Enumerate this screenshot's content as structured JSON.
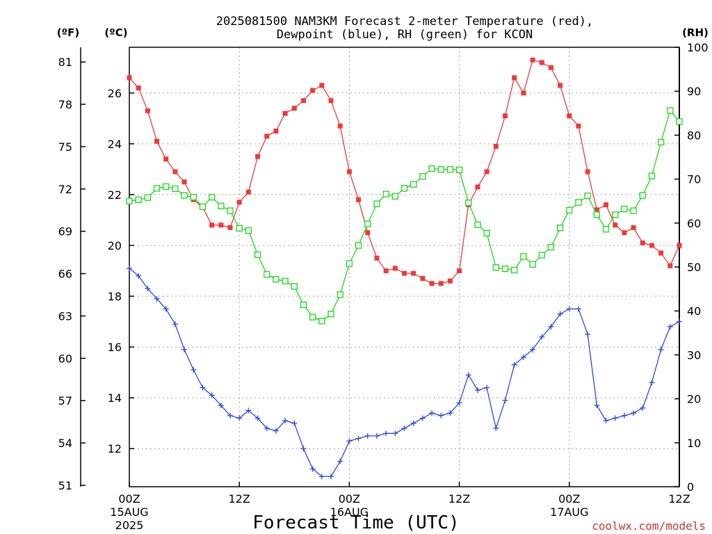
{
  "title_line1": "2025081500 NAM3KM Forecast 2-meter Temperature (red),",
  "title_line2": "Dewpoint (blue), RH (green) for KCON",
  "unit_f": "(ºF)",
  "unit_c": "(ºC)",
  "unit_rh": "(RH)",
  "xlabel": "Forecast Time (UTC)",
  "credit": "coolwx.com/models",
  "colors": {
    "temperature": "#f03838",
    "dewpoint": "#2848e8",
    "rh": "#18d818",
    "grid": "#a0a0a0",
    "credit": "#d03030"
  },
  "chart_data": {
    "type": "line",
    "x_unit": "hours since 2025-08-15 00Z",
    "x": [
      0,
      1,
      2,
      3,
      4,
      5,
      6,
      7,
      8,
      9,
      10,
      11,
      12,
      13,
      14,
      15,
      16,
      17,
      18,
      19,
      20,
      21,
      22,
      23,
      24,
      25,
      26,
      27,
      28,
      29,
      30,
      31,
      32,
      33,
      34,
      35,
      36,
      37,
      38,
      39,
      40,
      41,
      42,
      43,
      44,
      45,
      46,
      47,
      48,
      49,
      50,
      51,
      52,
      53,
      54,
      55,
      56,
      57,
      58,
      59,
      60
    ],
    "xlim": [
      0,
      60
    ],
    "x_ticks": [
      {
        "x": 0,
        "lines": [
          "00Z",
          "15AUG",
          "2025"
        ]
      },
      {
        "x": 12,
        "lines": [
          "12Z"
        ]
      },
      {
        "x": 24,
        "lines": [
          "00Z",
          "16AUG"
        ]
      },
      {
        "x": 36,
        "lines": [
          "12Z"
        ]
      },
      {
        "x": 48,
        "lines": [
          "00Z",
          "17AUG"
        ]
      },
      {
        "x": 60,
        "lines": [
          "12Z"
        ]
      }
    ],
    "y_c_lim": [
      10.5,
      27.8
    ],
    "y_c_ticks": [
      12,
      14,
      16,
      18,
      20,
      22,
      24,
      26
    ],
    "y_f_ticks": [
      51,
      54,
      57,
      60,
      63,
      66,
      69,
      72,
      75,
      78,
      81
    ],
    "y_rh_lim": [
      0,
      100
    ],
    "y_rh_ticks": [
      0,
      10,
      20,
      30,
      40,
      50,
      60,
      70,
      80,
      90,
      100
    ],
    "grid": true,
    "series": [
      {
        "name": "Temperature",
        "axis": "C",
        "marker": "filled-square",
        "values": [
          26.6,
          26.2,
          25.3,
          24.1,
          23.4,
          22.9,
          22.5,
          21.8,
          21.5,
          20.8,
          20.8,
          20.7,
          21.7,
          22.1,
          23.5,
          24.3,
          24.5,
          25.2,
          25.4,
          25.7,
          26.1,
          26.3,
          25.7,
          24.7,
          22.9,
          21.8,
          20.5,
          19.5,
          19.0,
          19.1,
          18.9,
          18.9,
          18.7,
          18.5,
          18.5,
          18.6,
          19.0,
          21.6,
          22.3,
          22.9,
          23.9,
          25.1,
          26.6,
          26.0,
          27.3,
          27.2,
          27.0,
          26.3,
          25.1,
          24.7,
          22.9,
          21.4,
          21.6,
          20.8,
          20.5,
          20.7,
          20.1,
          20.0,
          19.7,
          19.2,
          20.0
        ]
      },
      {
        "name": "Dewpoint",
        "axis": "C",
        "marker": "plus",
        "values": [
          19.1,
          18.8,
          18.3,
          17.9,
          17.5,
          16.9,
          15.9,
          15.1,
          14.4,
          14.1,
          13.7,
          13.3,
          13.2,
          13.5,
          13.2,
          12.8,
          12.7,
          13.1,
          13.0,
          12.0,
          11.2,
          10.9,
          10.9,
          11.5,
          12.3,
          12.4,
          12.5,
          12.5,
          12.6,
          12.6,
          12.8,
          13.0,
          13.2,
          13.4,
          13.3,
          13.4,
          13.8,
          14.9,
          14.3,
          14.4,
          12.8,
          13.9,
          15.3,
          15.6,
          15.9,
          16.4,
          16.8,
          17.3,
          17.5,
          17.5,
          16.5,
          13.7,
          13.1,
          13.2,
          13.3,
          13.4,
          13.6,
          14.6,
          15.9,
          16.8,
          17.0
        ]
      },
      {
        "name": "RH",
        "axis": "RH",
        "marker": "open-square",
        "values": [
          65,
          65.3,
          65.8,
          67.9,
          68.3,
          67.8,
          66.3,
          65.9,
          63.7,
          65.9,
          63.9,
          62.8,
          58.8,
          58.3,
          52.8,
          48.3,
          47.2,
          46.8,
          45.6,
          41.4,
          38.6,
          37.7,
          39.3,
          43.7,
          50.8,
          54.9,
          59.8,
          64.4,
          66.6,
          66.1,
          67.9,
          68.8,
          70.6,
          72.4,
          72.2,
          72.2,
          72.1,
          64.6,
          59.6,
          57.7,
          49.9,
          49.6,
          49.3,
          52.4,
          50.6,
          52.7,
          54.5,
          58.9,
          62.9,
          64.7,
          66.2,
          61.9,
          58.6,
          61.9,
          63.2,
          62.8,
          66.3,
          70.7,
          78.4,
          85.6,
          83.1
        ]
      }
    ]
  }
}
